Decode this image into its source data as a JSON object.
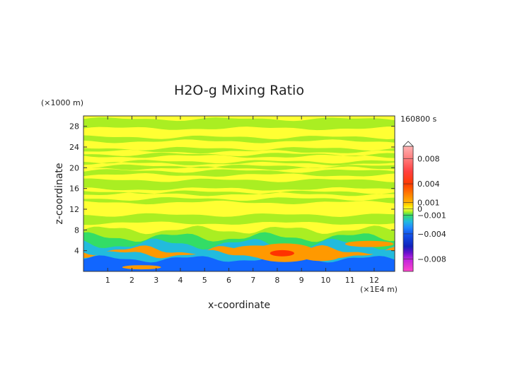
{
  "chart_data": {
    "type": "heatmap",
    "title": "H2O-g Mixing Ratio",
    "xlabel": "x-coordinate",
    "ylabel": "z-coordinate",
    "x_unit": "(×1E4 m)",
    "y_unit": "(×1000 m)",
    "time_label": "160800 s",
    "xlim": [
      0,
      12.85
    ],
    "ylim": [
      0,
      30
    ],
    "x_ticks": [
      1,
      2,
      3,
      4,
      5,
      6,
      7,
      8,
      9,
      10,
      11,
      12
    ],
    "y_ticks": [
      4,
      8,
      12,
      16,
      20,
      24,
      28
    ],
    "colorbar": {
      "range": [
        -0.01,
        0.01
      ],
      "labels": [
        {
          "value": 0.008,
          "text": "0.008"
        },
        {
          "value": 0.004,
          "text": "0.004"
        },
        {
          "value": 0.001,
          "text": "0.001"
        },
        {
          "value": 0.0,
          "text": "0"
        },
        {
          "value": -0.001,
          "text": "−0.001"
        },
        {
          "value": -0.004,
          "text": "−0.004"
        },
        {
          "value": -0.008,
          "text": "−0.008"
        }
      ],
      "stops": [
        {
          "value": 0.01,
          "color": "#ffb3b3"
        },
        {
          "value": 0.008,
          "color": "#ff7b7b"
        },
        {
          "value": 0.006,
          "color": "#ff4040"
        },
        {
          "value": 0.004,
          "color": "#ff3a00"
        },
        {
          "value": 0.002,
          "color": "#ff8c00"
        },
        {
          "value": 0.001,
          "color": "#ffb400"
        },
        {
          "value": 0.0005,
          "color": "#ffe000"
        },
        {
          "value": 0.0,
          "color": "#ffff33"
        },
        {
          "value": -0.0005,
          "color": "#aaee22"
        },
        {
          "value": -0.001,
          "color": "#33dd66"
        },
        {
          "value": -0.002,
          "color": "#22bbdd"
        },
        {
          "value": -0.003,
          "color": "#2288ff"
        },
        {
          "value": -0.004,
          "color": "#1155ee"
        },
        {
          "value": -0.006,
          "color": "#1122bb"
        },
        {
          "value": -0.007,
          "color": "#6611cc"
        },
        {
          "value": -0.008,
          "color": "#bb22dd"
        },
        {
          "value": -0.01,
          "color": "#ff44cc"
        }
      ]
    },
    "field_colors": {
      "background": "#ffff33",
      "green": "#aaee22",
      "cyan": "#33dd66",
      "sky": "#22bbdd",
      "blue": "#1166ff",
      "orange": "#ff9900",
      "red": "#ff3300"
    },
    "bands": [
      {
        "z": [
          27.6,
          29.4
        ],
        "color": "green"
      },
      {
        "z": [
          25.1,
          25.9
        ],
        "color": "green"
      },
      {
        "z": [
          23.1,
          23.7
        ],
        "color": "green"
      },
      {
        "z": [
          22.2,
          22.6
        ],
        "color": "green"
      },
      {
        "z": [
          20.8,
          21.2
        ],
        "color": "green"
      },
      {
        "z": [
          19.9,
          20.3
        ],
        "color": "green"
      },
      {
        "z": [
          18.6,
          19.4
        ],
        "color": "green"
      },
      {
        "z": [
          15.9,
          17.6
        ],
        "color": "green"
      },
      {
        "z": [
          14.9,
          15.3
        ],
        "color": "green"
      },
      {
        "z": [
          13.3,
          14.0
        ],
        "color": "green"
      },
      {
        "z": [
          9.3,
          10.9
        ],
        "color": "green"
      }
    ],
    "low_layers": [
      {
        "z_top": 8.0,
        "z_amp": 0.6,
        "color": "green"
      },
      {
        "z_top": 6.6,
        "z_amp": 0.7,
        "color": "cyan"
      },
      {
        "z_top": 5.3,
        "z_amp": 0.8,
        "color": "sky"
      },
      {
        "z_top": 4.1,
        "z_amp": 0.7,
        "color": "orange"
      },
      {
        "z_top": 3.3,
        "z_amp": 0.6,
        "color": "sky"
      },
      {
        "z_top": 2.4,
        "z_amp": 0.5,
        "color": "blue"
      }
    ],
    "blobs": [
      {
        "x": 8.3,
        "z": 3.6,
        "rx": 1.3,
        "rz": 1.8,
        "color": "orange"
      },
      {
        "x": 7.1,
        "z": 4.0,
        "rx": 1.0,
        "rz": 1.0,
        "color": "orange"
      },
      {
        "x": 9.8,
        "z": 3.0,
        "rx": 0.8,
        "rz": 1.0,
        "color": "orange"
      },
      {
        "x": 8.2,
        "z": 3.5,
        "rx": 0.5,
        "rz": 0.6,
        "color": "red"
      },
      {
        "x": 11.8,
        "z": 5.3,
        "rx": 1.0,
        "rz": 0.6,
        "color": "orange"
      },
      {
        "x": 2.4,
        "z": 0.8,
        "rx": 0.8,
        "rz": 0.4,
        "color": "orange"
      }
    ]
  }
}
